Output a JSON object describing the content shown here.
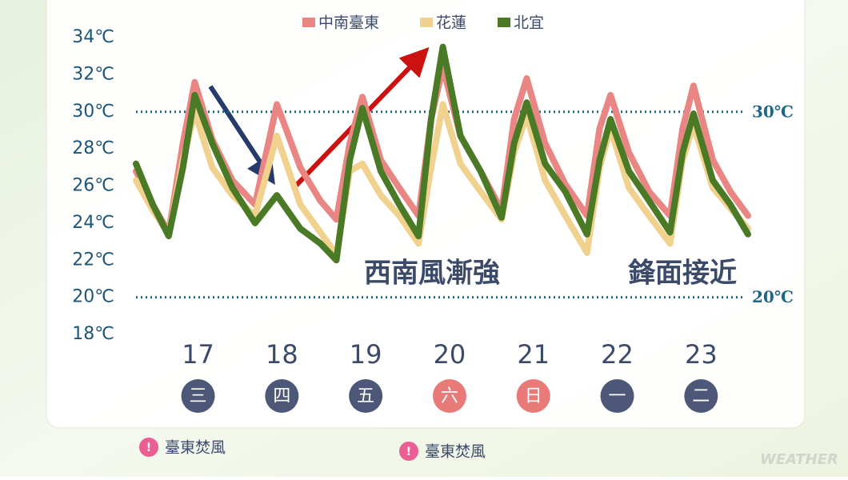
{
  "chart_data": {
    "type": "line",
    "x": [
      16.26,
      16.46,
      16.65,
      16.82,
      16.96,
      17.17,
      17.41,
      17.68,
      17.94,
      18.22,
      18.46,
      18.65,
      18.81,
      18.96,
      19.18,
      19.4,
      19.63,
      19.78,
      19.92,
      20.13,
      20.37,
      20.62,
      20.77,
      20.92,
      21.14,
      21.38,
      21.64,
      21.79,
      21.92,
      22.14,
      22.38,
      22.63,
      22.78,
      22.91,
      23.14,
      23.35,
      23.56
    ],
    "series": [
      {
        "name": "中南臺東",
        "color": "#e98583",
        "values": [
          26.8,
          25.0,
          23.5,
          28.3,
          31.6,
          28.5,
          26.3,
          25.0,
          30.4,
          27.0,
          25.2,
          24.2,
          28.3,
          30.8,
          27.4,
          25.9,
          24.4,
          29.6,
          32.4,
          28.7,
          26.8,
          24.7,
          29.6,
          31.8,
          28.3,
          26.1,
          24.4,
          29.1,
          30.9,
          27.8,
          25.7,
          24.4,
          29.1,
          31.4,
          27.4,
          25.7,
          24.4
        ]
      },
      {
        "name": "花蓮",
        "color": "#f0d28e",
        "values": [
          26.3,
          24.7,
          23.4,
          27.4,
          30.0,
          27.0,
          25.5,
          24.4,
          28.7,
          25.0,
          23.5,
          22.3,
          26.8,
          27.2,
          25.5,
          24.4,
          22.9,
          27.0,
          30.4,
          27.2,
          25.7,
          24.2,
          27.8,
          29.8,
          26.3,
          24.4,
          22.4,
          27.0,
          29.1,
          25.9,
          24.4,
          22.9,
          27.4,
          29.3,
          25.9,
          24.8,
          23.7
        ]
      },
      {
        "name": "北宜",
        "color": "#4b7a26",
        "values": [
          27.2,
          25.0,
          23.3,
          27.0,
          30.9,
          28.3,
          25.9,
          24.0,
          25.5,
          23.7,
          22.9,
          22.0,
          27.4,
          30.2,
          26.8,
          25.0,
          23.3,
          29.6,
          33.5,
          28.7,
          26.8,
          24.3,
          28.3,
          30.5,
          27.2,
          25.7,
          23.4,
          27.4,
          29.6,
          26.8,
          25.2,
          23.5,
          27.8,
          29.9,
          26.3,
          25.0,
          23.4
        ]
      }
    ],
    "xlim": [
      16.26,
      23.56
    ],
    "xticks": [
      17,
      18,
      19,
      20,
      21,
      22,
      23
    ],
    "weekdays": [
      "三",
      "四",
      "五",
      "六",
      "日",
      "一",
      "二"
    ],
    "weekday_colors": [
      "#4d5878",
      "#4d5878",
      "#4d5878",
      "#e87a78",
      "#e87a78",
      "#4d5878",
      "#4d5878"
    ],
    "ylim": [
      18,
      34
    ],
    "yticks": [
      {
        "value": 18,
        "label": "18℃"
      },
      {
        "value": 20,
        "label": "20℃"
      },
      {
        "value": 22,
        "label": "22℃"
      },
      {
        "value": 24,
        "label": "24℃"
      },
      {
        "value": 26,
        "label": "26℃"
      },
      {
        "value": 28,
        "label": "28℃"
      },
      {
        "value": 30,
        "label": "30℃"
      },
      {
        "value": 32,
        "label": "32℃"
      },
      {
        "value": 34,
        "label": "34℃"
      }
    ],
    "reference_lines": [
      {
        "value": 30,
        "label": "30℃"
      },
      {
        "value": 20,
        "label": "20℃"
      }
    ],
    "annotations": [
      "西南風漸強",
      "鋒面接近"
    ],
    "notes": [
      "臺東焚風",
      "臺東焚風"
    ],
    "watermark": "WEATHER"
  }
}
